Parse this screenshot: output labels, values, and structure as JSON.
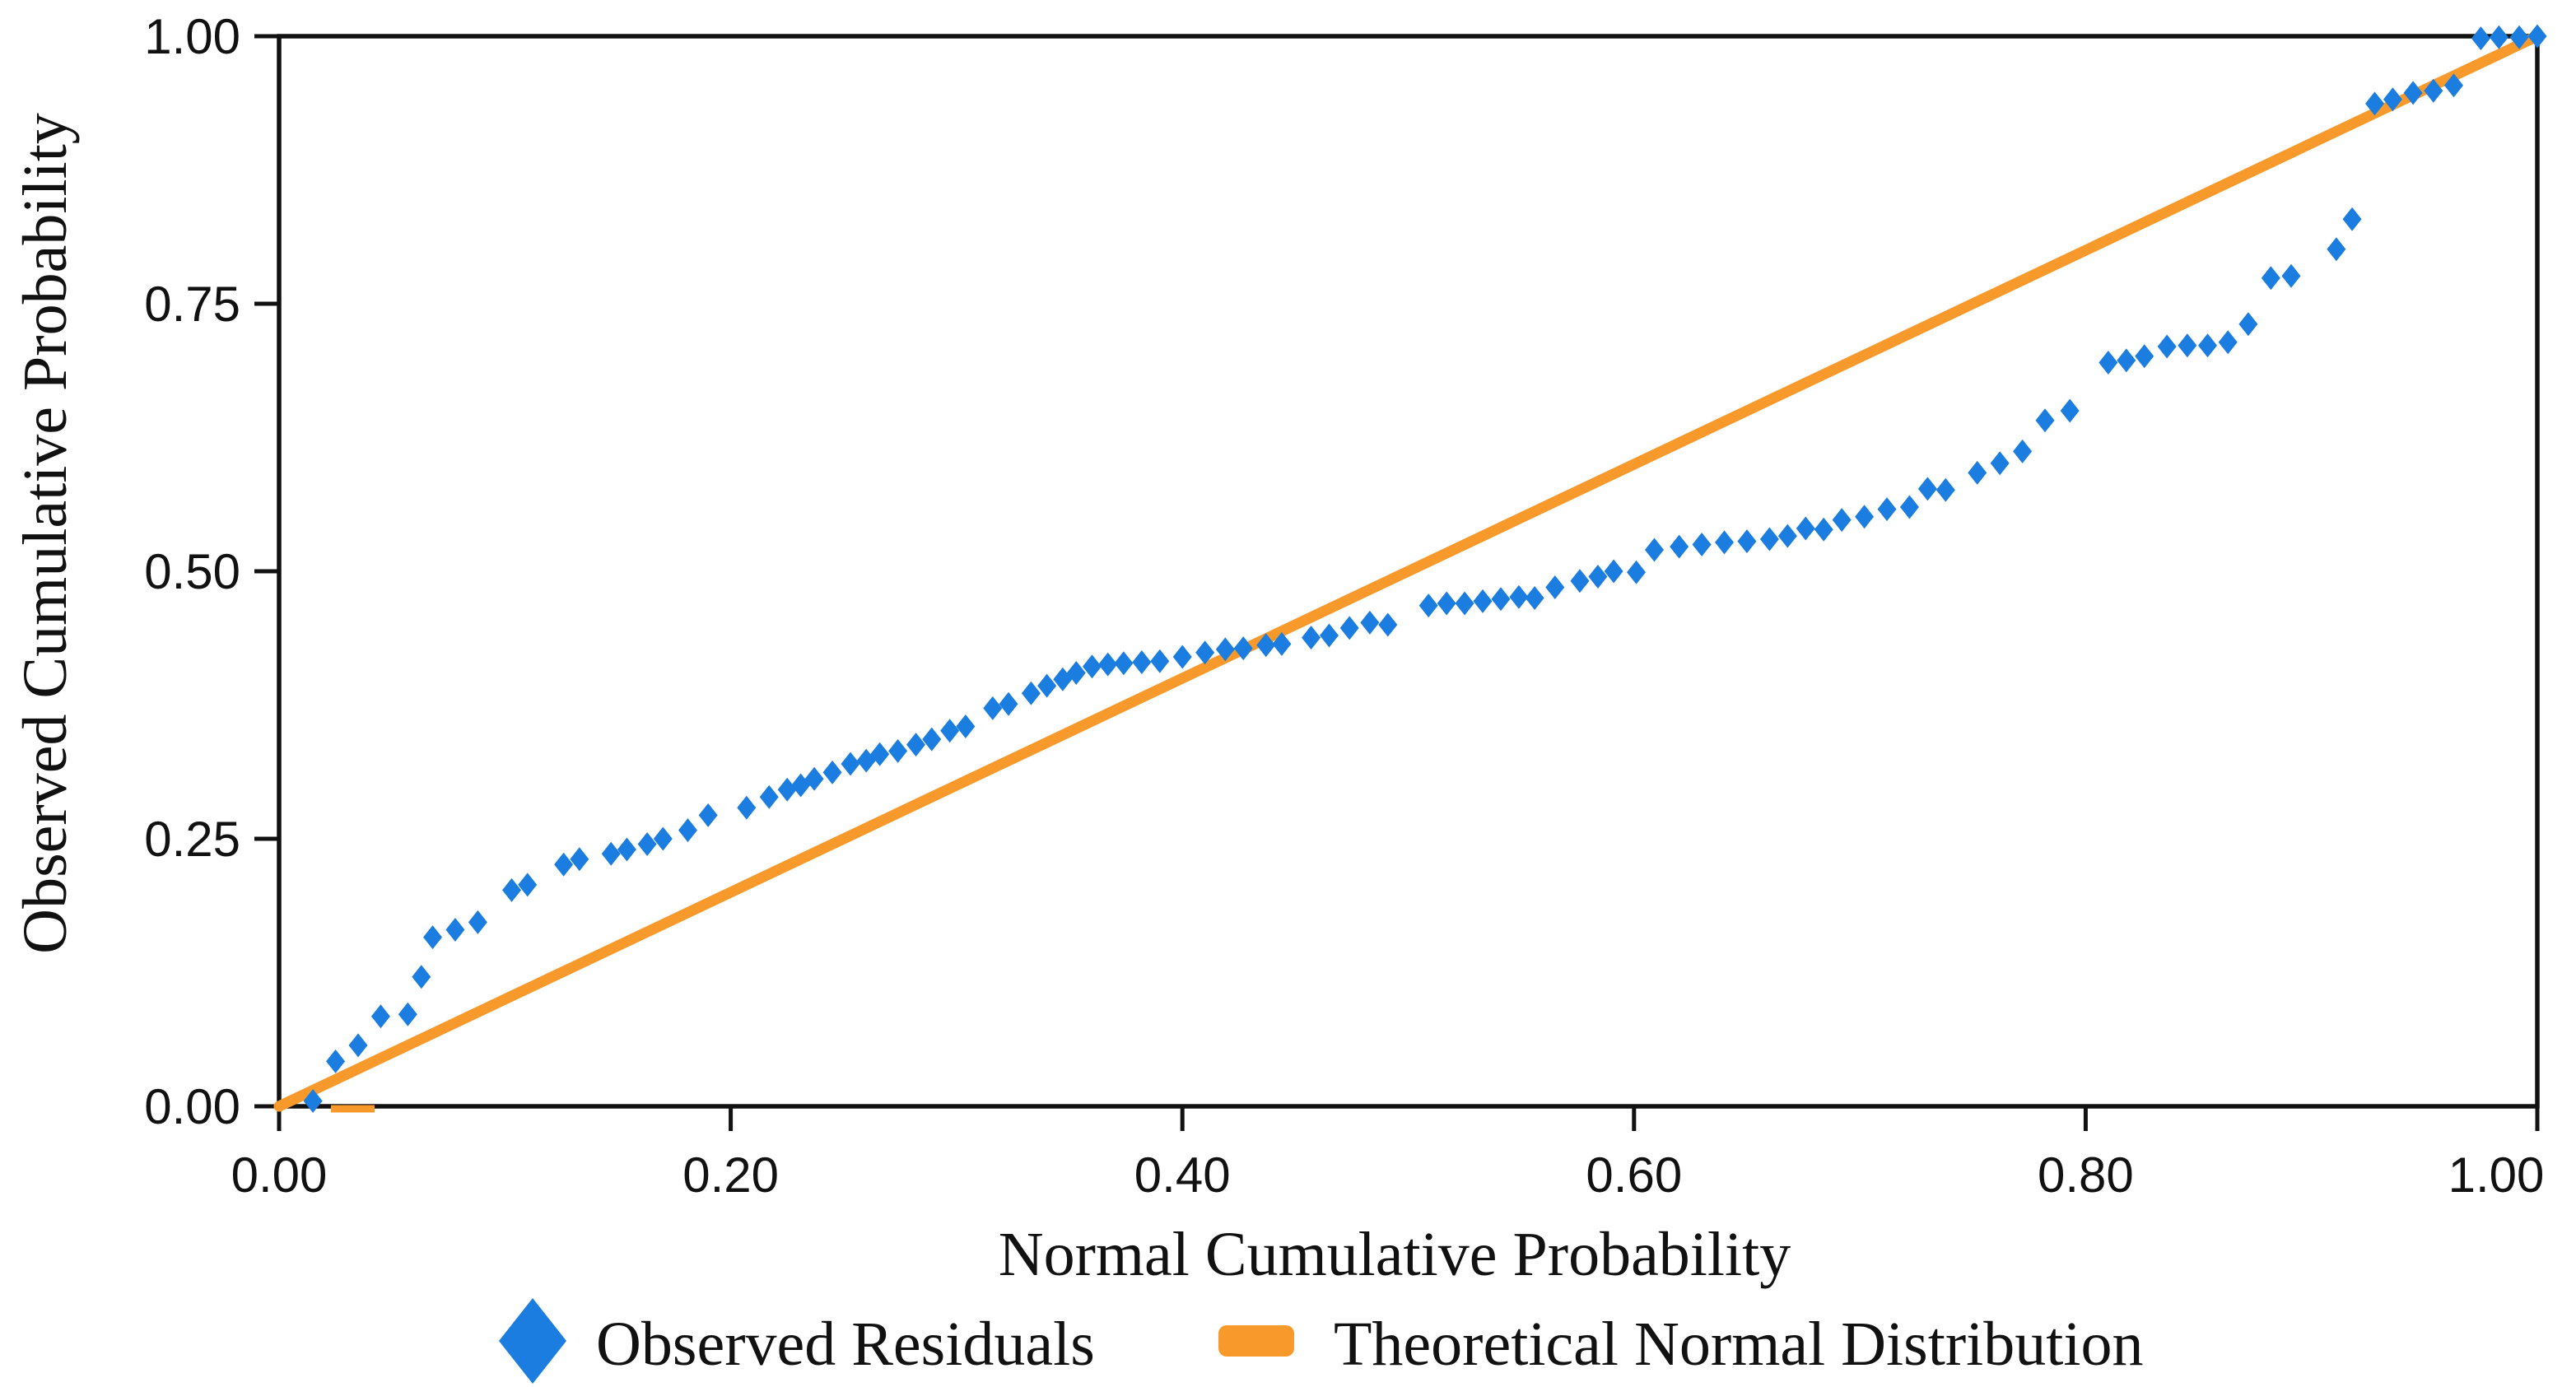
{
  "figure": {
    "x_axis_title": "Normal Cumulative Probability",
    "y_axis_title": "Observed Cumulative Probability"
  },
  "legend": {
    "items": [
      {
        "label": "Observed Residuals",
        "marker": "diamond-icon",
        "color": "#1B7DE0"
      },
      {
        "label": "Theoretical Normal Distribution",
        "marker": "line-swatch",
        "color": "#F89A2B"
      }
    ]
  },
  "colors": {
    "scatter": "#1B7DE0",
    "line": "#F89A2B",
    "axis": "#111111"
  },
  "chart_data": {
    "type": "scatter",
    "title": "",
    "xlabel": "Normal Cumulative Probability",
    "ylabel": "Observed Cumulative Probability",
    "xlim": [
      0,
      1
    ],
    "ylim": [
      0,
      1
    ],
    "grid": false,
    "legend_position": "bottom",
    "x_tick_values": [
      0,
      0.2,
      0.4,
      0.6,
      0.8,
      1.0
    ],
    "x_tick_labels": [
      "0.00",
      "0.20",
      "0.40",
      "0.60",
      "0.80",
      "1.00"
    ],
    "y_tick_values": [
      0,
      0.25,
      0.5,
      0.75,
      1.0
    ],
    "y_tick_labels": [
      "0.00",
      "0.25",
      "0.50",
      "0.75",
      "1.00"
    ],
    "series": [
      {
        "name": "Observed Residuals",
        "type": "scatter",
        "marker": "diamond",
        "color": "#1B7DE0",
        "points": [
          [
            0.015,
            0.005
          ],
          [
            0.025,
            0.042
          ],
          [
            0.035,
            0.057
          ],
          [
            0.045,
            0.084
          ],
          [
            0.057,
            0.086
          ],
          [
            0.063,
            0.121
          ],
          [
            0.068,
            0.158
          ],
          [
            0.078,
            0.165
          ],
          [
            0.088,
            0.172
          ],
          [
            0.103,
            0.202
          ],
          [
            0.11,
            0.207
          ],
          [
            0.126,
            0.226
          ],
          [
            0.133,
            0.231
          ],
          [
            0.147,
            0.236
          ],
          [
            0.154,
            0.24
          ],
          [
            0.163,
            0.245
          ],
          [
            0.17,
            0.25
          ],
          [
            0.181,
            0.258
          ],
          [
            0.19,
            0.272
          ],
          [
            0.207,
            0.279
          ],
          [
            0.217,
            0.289
          ],
          [
            0.225,
            0.296
          ],
          [
            0.231,
            0.3
          ],
          [
            0.237,
            0.306
          ],
          [
            0.245,
            0.312
          ],
          [
            0.253,
            0.32
          ],
          [
            0.26,
            0.323
          ],
          [
            0.266,
            0.329
          ],
          [
            0.274,
            0.332
          ],
          [
            0.282,
            0.338
          ],
          [
            0.289,
            0.343
          ],
          [
            0.297,
            0.351
          ],
          [
            0.304,
            0.355
          ],
          [
            0.316,
            0.372
          ],
          [
            0.323,
            0.376
          ],
          [
            0.333,
            0.386
          ],
          [
            0.34,
            0.393
          ],
          [
            0.347,
            0.399
          ],
          [
            0.353,
            0.405
          ],
          [
            0.36,
            0.411
          ],
          [
            0.367,
            0.413
          ],
          [
            0.374,
            0.414
          ],
          [
            0.382,
            0.415
          ],
          [
            0.39,
            0.416
          ],
          [
            0.4,
            0.42
          ],
          [
            0.41,
            0.424
          ],
          [
            0.419,
            0.427
          ],
          [
            0.427,
            0.428
          ],
          [
            0.437,
            0.431
          ],
          [
            0.444,
            0.432
          ],
          [
            0.457,
            0.438
          ],
          [
            0.465,
            0.44
          ],
          [
            0.474,
            0.447
          ],
          [
            0.483,
            0.452
          ],
          [
            0.491,
            0.45
          ],
          [
            0.509,
            0.468
          ],
          [
            0.517,
            0.47
          ],
          [
            0.525,
            0.47
          ],
          [
            0.533,
            0.472
          ],
          [
            0.541,
            0.474
          ],
          [
            0.549,
            0.476
          ],
          [
            0.556,
            0.475
          ],
          [
            0.565,
            0.485
          ],
          [
            0.576,
            0.491
          ],
          [
            0.584,
            0.495
          ],
          [
            0.591,
            0.5
          ],
          [
            0.601,
            0.499
          ],
          [
            0.609,
            0.52
          ],
          [
            0.62,
            0.523
          ],
          [
            0.63,
            0.525
          ],
          [
            0.64,
            0.527
          ],
          [
            0.65,
            0.528
          ],
          [
            0.66,
            0.53
          ],
          [
            0.668,
            0.533
          ],
          [
            0.676,
            0.54
          ],
          [
            0.684,
            0.539
          ],
          [
            0.692,
            0.548
          ],
          [
            0.702,
            0.551
          ],
          [
            0.712,
            0.558
          ],
          [
            0.722,
            0.56
          ],
          [
            0.73,
            0.577
          ],
          [
            0.738,
            0.576
          ],
          [
            0.752,
            0.592
          ],
          [
            0.762,
            0.601
          ],
          [
            0.772,
            0.612
          ],
          [
            0.782,
            0.641
          ],
          [
            0.793,
            0.65
          ],
          [
            0.81,
            0.695
          ],
          [
            0.818,
            0.697
          ],
          [
            0.826,
            0.701
          ],
          [
            0.836,
            0.71
          ],
          [
            0.845,
            0.711
          ],
          [
            0.854,
            0.711
          ],
          [
            0.863,
            0.714
          ],
          [
            0.872,
            0.731
          ],
          [
            0.882,
            0.774
          ],
          [
            0.891,
            0.776
          ],
          [
            0.911,
            0.801
          ],
          [
            0.918,
            0.829
          ],
          [
            0.928,
            0.937
          ],
          [
            0.936,
            0.941
          ],
          [
            0.945,
            0.947
          ],
          [
            0.954,
            0.949
          ],
          [
            0.963,
            0.954
          ],
          [
            0.975,
            0.998
          ],
          [
            0.983,
            0.999
          ],
          [
            0.992,
            0.999
          ],
          [
            1.0,
            1.0
          ]
        ]
      },
      {
        "name": "Theoretical Normal Distribution",
        "type": "line",
        "color": "#F89A2B",
        "points": [
          [
            0,
            0
          ],
          [
            1,
            1
          ]
        ]
      }
    ]
  }
}
